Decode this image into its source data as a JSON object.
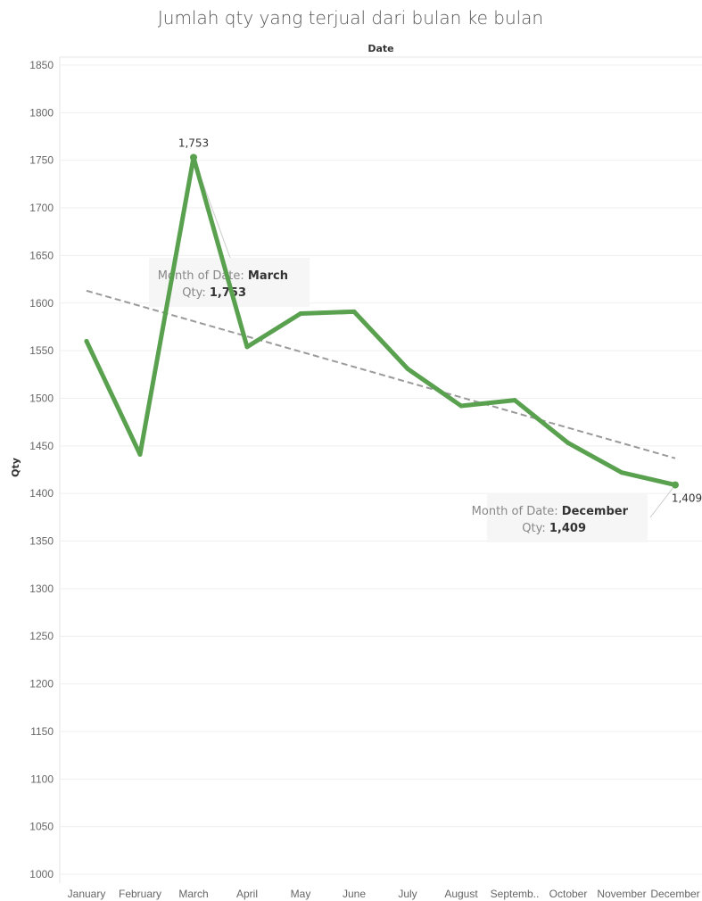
{
  "chart_data": {
    "type": "line",
    "title": "Jumlah qty yang terjual dari bulan ke bulan",
    "column_header": "Date",
    "xlabel": "",
    "ylabel": "Qty",
    "categories": [
      "January",
      "February",
      "March",
      "April",
      "May",
      "June",
      "July",
      "August",
      "Septemb..",
      "October",
      "November",
      "December"
    ],
    "series": [
      {
        "values": [
          1560,
          1441,
          1753,
          1554,
          1589,
          1591,
          1531,
          1492,
          1498,
          1453,
          1422,
          1409
        ]
      }
    ],
    "trend_line": {
      "start": 1613,
      "end": 1437,
      "style": "dashed"
    },
    "ylim": [
      1000,
      1850
    ],
    "y_ticks": [
      "1000",
      "1050",
      "1100",
      "1150",
      "1200",
      "1250",
      "1300",
      "1350",
      "1400",
      "1450",
      "1500",
      "1550",
      "1600",
      "1650",
      "1700",
      "1750",
      "1800",
      "1850"
    ],
    "grid": true,
    "data_labels": [
      {
        "index": 2,
        "text": "1,753"
      },
      {
        "index": 11,
        "text": "1,409"
      }
    ],
    "annotations": [
      {
        "index": 2,
        "key1": "Month of Date: ",
        "val1": "March",
        "key2": "Qty: ",
        "val2": "1,753"
      },
      {
        "index": 11,
        "key1": "Month of Date: ",
        "val1": "December",
        "key2": "Qty: ",
        "val2": "1,409"
      }
    ],
    "colors": {
      "line": "#59A14F",
      "trend": "#9A9A9A",
      "grid": "#EFEFEF",
      "annotation_bg": "#F6F6F6"
    }
  }
}
